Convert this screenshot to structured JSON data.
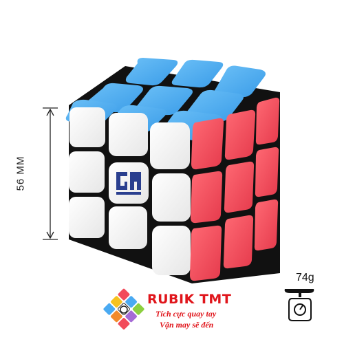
{
  "product": {
    "dimension_label": "56 MM",
    "weight_label": "74g",
    "cube_logo": "GAN",
    "colors": {
      "top": "#4aaaf2",
      "front": "#f7f7f7",
      "right": "#f24a5a",
      "core": "#111111"
    }
  },
  "brand": {
    "name": "RUBIK TMT",
    "slogan_line1": "Tích cực quay tay",
    "slogan_line2": "Vận may sẽ đến",
    "logo_icon": "rubik-cube-logo-icon",
    "colors": {
      "text": "#e0151b"
    }
  },
  "icons": {
    "dimension": "dimension-arrow-icon",
    "weight": "scale-icon"
  }
}
